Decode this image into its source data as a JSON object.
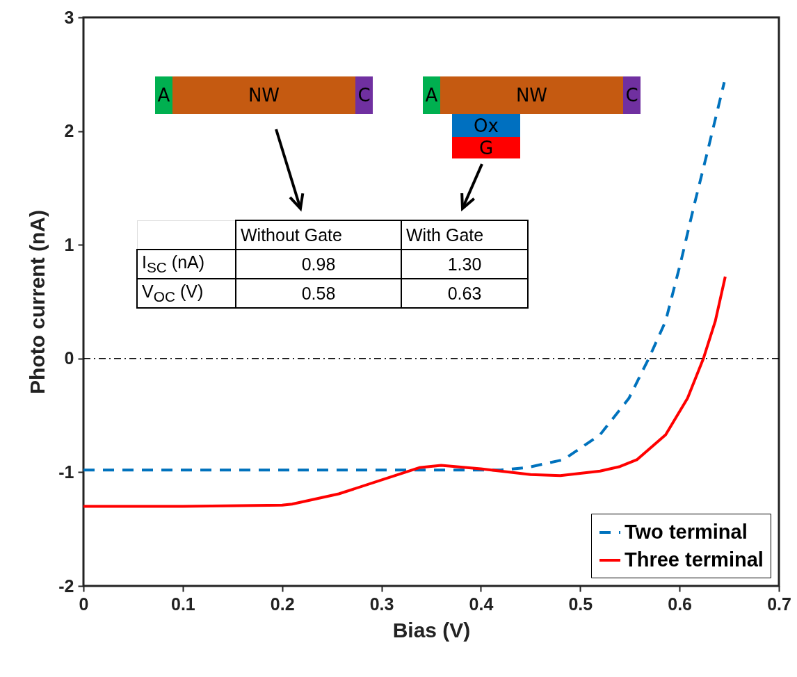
{
  "chart_data": {
    "type": "line",
    "xlabel": "Bias (V)",
    "ylabel": "Photo current (nA)",
    "xlim": [
      0,
      0.7
    ],
    "xticks": [
      0,
      0.1,
      0.2,
      0.3,
      0.4,
      0.5,
      0.6,
      0.7
    ],
    "ylim": [
      -2,
      3
    ],
    "yticks": [
      -2,
      -1,
      0,
      1,
      2,
      3
    ],
    "grid": false,
    "legend": "bottom right",
    "marker": "none",
    "series": [
      {
        "name": "Two terminal",
        "color": "#0072bd",
        "line_style": "dashed",
        "x": [
          0,
          0.1,
          0.2,
          0.3,
          0.4,
          0.42,
          0.446,
          0.483,
          0.52,
          0.549,
          0.569,
          0.586,
          0.601,
          0.615,
          0.627,
          0.645
        ],
        "values": [
          -0.98,
          -0.98,
          -0.98,
          -0.98,
          -0.98,
          -0.98,
          -0.96,
          -0.89,
          -0.67,
          -0.35,
          0.0,
          0.33,
          0.84,
          1.36,
          1.78,
          2.43
        ]
      },
      {
        "name": "Three terminal",
        "color": "#ff0000",
        "line_style": "solid",
        "x": [
          0,
          0.1,
          0.2,
          0.21,
          0.257,
          0.303,
          0.338,
          0.36,
          0.4,
          0.45,
          0.48,
          0.52,
          0.54,
          0.557,
          0.586,
          0.608,
          0.624,
          0.636,
          0.646
        ],
        "values": [
          -1.3,
          -1.3,
          -1.29,
          -1.28,
          -1.19,
          -1.06,
          -0.96,
          -0.94,
          -0.97,
          -1.02,
          -1.03,
          -0.99,
          -0.95,
          -0.89,
          -0.67,
          -0.35,
          0.0,
          0.33,
          0.72
        ]
      }
    ],
    "ref_lines": [
      {
        "axis": "y",
        "value": 0,
        "color": "#000000",
        "line_style": "dashdot"
      }
    ],
    "annotations": [
      "A",
      "NW",
      "C",
      "A",
      "NW",
      "C",
      "Ox",
      "G",
      "Without Gate",
      "With Gate",
      "I$_{SC}$ (nA)",
      "0.98",
      "1.30",
      "V$_{OC}$ (V)",
      "0.58",
      "0.63"
    ]
  }
}
